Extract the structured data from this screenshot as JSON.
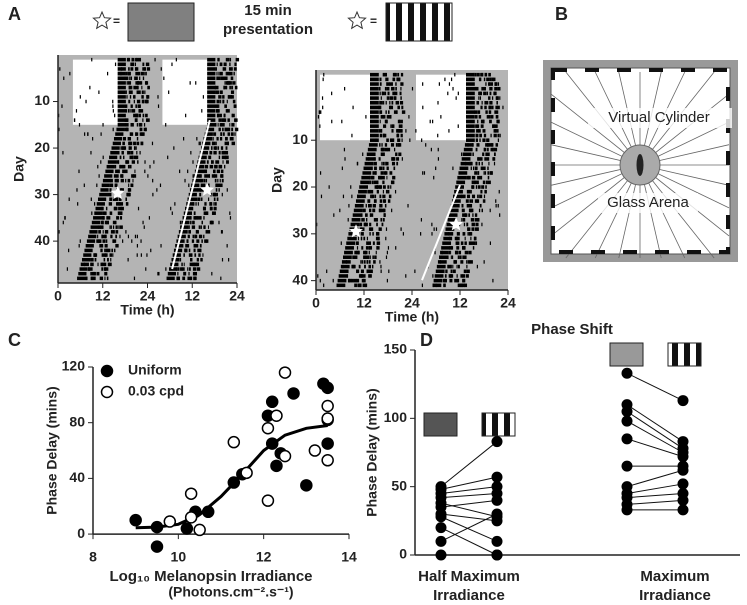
{
  "panel_labels": [
    "A",
    "B",
    "C",
    "D"
  ],
  "header": {
    "equals": [
      "=",
      "="
    ],
    "title": "15 min\npresentation"
  },
  "diagram": {
    "labels": [
      "Virtual Cylinder",
      "Glass Arena"
    ]
  },
  "chart_data": [
    {
      "type": "actogram",
      "ylabel": "Day",
      "xlabel": "Time (h)",
      "xlim": [
        0,
        48
      ],
      "xticks": [
        0,
        12,
        24,
        {
          "value": 36,
          "label": "12"
        },
        {
          "value": 48,
          "label": "24"
        }
      ],
      "ylim": [
        0,
        49
      ],
      "yticks": [
        10,
        20,
        30,
        40
      ]
    },
    {
      "type": "actogram",
      "ylabel": "Day",
      "xlabel": "Time (h)",
      "xlim": [
        0,
        48
      ],
      "xticks": [
        0,
        12,
        24,
        {
          "value": 36,
          "label": "12"
        },
        {
          "value": 48,
          "label": "24"
        }
      ],
      "ylim": [
        -5,
        42
      ],
      "yticks": [
        10,
        20,
        30,
        40
      ]
    },
    {
      "type": "scatter",
      "ylabel": "Phase Delay (mins)",
      "xlabel": "Log₁₀ Melanopsin Irradiance",
      "xlabel2": "(Photons.cm⁻².s⁻¹)",
      "xlim": [
        8,
        14
      ],
      "xticks": [
        8,
        10,
        12,
        14
      ],
      "ylim": [
        -10,
        120
      ],
      "yticks": [
        0,
        40,
        80,
        120
      ],
      "legend": "upper left",
      "series": [
        {
          "name": "Uniform",
          "color": "#000000",
          "marker": "filled",
          "x": [
            9,
            9.5,
            9.5,
            10.2,
            10.4,
            10.7,
            11.3,
            11.5,
            12.1,
            12.2,
            12.2,
            12.3,
            12.4,
            12.7,
            13.0,
            13.4,
            13.5,
            13.5,
            13.5
          ],
          "values": [
            10,
            5,
            -9,
            4,
            16,
            16,
            37,
            43,
            85,
            95,
            65,
            49,
            58,
            101,
            35,
            108,
            105,
            82,
            65
          ]
        },
        {
          "name": "0.03 cpd",
          "color": "#000000",
          "marker": "open",
          "x": [
            9.8,
            10.3,
            10.3,
            10.5,
            11.3,
            11.6,
            12.1,
            12.1,
            12.3,
            12.5,
            12.5,
            13.2,
            13.5,
            13.5,
            13.5
          ],
          "values": [
            9,
            29,
            12,
            3,
            66,
            44,
            76,
            24,
            85,
            116,
            56,
            60,
            92,
            83,
            53
          ]
        }
      ],
      "fit": {
        "x": [
          9,
          9.5,
          10,
          10.5,
          11,
          11.5,
          12,
          12.5,
          13,
          13.5
        ],
        "y": [
          4.5,
          5,
          7,
          14,
          27,
          43,
          60,
          71,
          76,
          78
        ],
        "color": "#000000"
      }
    },
    {
      "type": "paired",
      "title": "Phase Shift",
      "ylabel": "Phase Delay (mins)",
      "ylim": [
        0,
        150
      ],
      "yticks": [
        0,
        50,
        100,
        150
      ],
      "categories": [
        "Half Maximum\nIrradiance",
        "Maximum\nIrradiance"
      ],
      "groups": [
        {
          "uniform_color": "#555555",
          "uniform": [
            50,
            48,
            45,
            42,
            38,
            35,
            30,
            28,
            20,
            10,
            0
          ],
          "grating": [
            83,
            57,
            50,
            45,
            28,
            40,
            25,
            10,
            0,
            30,
            0
          ]
        },
        {
          "uniform_color": "#999999",
          "uniform": [
            133,
            110,
            105,
            98,
            85,
            65,
            50,
            45,
            42,
            37,
            33
          ],
          "grating": [
            113,
            83,
            78,
            75,
            72,
            65,
            62,
            52,
            45,
            40,
            33
          ]
        }
      ]
    }
  ]
}
